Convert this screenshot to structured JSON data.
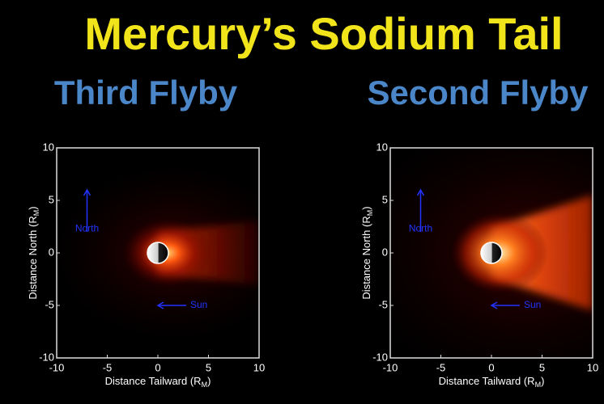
{
  "title": "Mercury’s Sodium Tail",
  "chart_data": [
    {
      "type": "image",
      "title": "Third Flyby",
      "xlabel": {
        "text": "Distance Tailward (R",
        "sub": "M",
        "end": ")"
      },
      "ylabel": {
        "text": "Distance North (R",
        "sub": "M",
        "end": ")"
      },
      "xlim": [
        -10,
        10
      ],
      "ylim": [
        -10,
        10
      ],
      "xticks": [
        -10,
        -5,
        0,
        5,
        10
      ],
      "yticks": [
        -10,
        -5,
        0,
        5,
        10
      ],
      "annotations": [
        "North",
        "Sun"
      ]
    },
    {
      "type": "image",
      "title": "Second Flyby",
      "xlabel": {
        "text": "Distance Tailward (R",
        "sub": "M",
        "end": ")"
      },
      "ylabel": {
        "text": "Distance North (R",
        "sub": "M",
        "end": ")"
      },
      "xlim": [
        -10,
        10
      ],
      "ylim": [
        -10,
        10
      ],
      "xticks": [
        -10,
        -5,
        0,
        5,
        10
      ],
      "yticks": [
        -10,
        -5,
        0,
        5,
        10
      ],
      "annotations": [
        "North",
        "Sun"
      ]
    }
  ]
}
